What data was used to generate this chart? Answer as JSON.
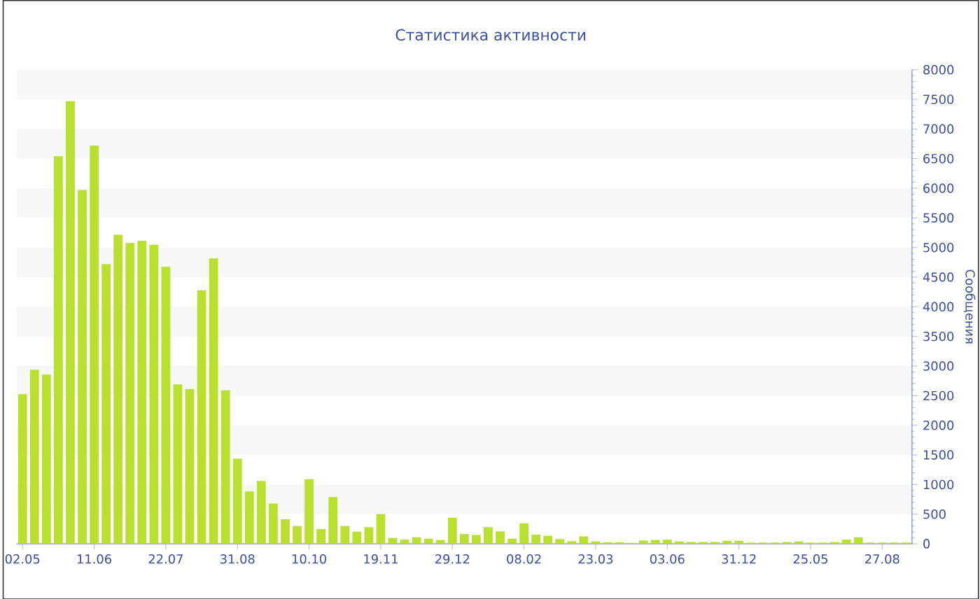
{
  "chart_data": {
    "type": "bar",
    "title": "Статистика активности",
    "ylabel": "Сообщения",
    "categories": [
      "02.05",
      null,
      null,
      null,
      null,
      null,
      "11.06",
      null,
      null,
      null,
      null,
      null,
      "22.07",
      null,
      null,
      null,
      null,
      null,
      "31.08",
      null,
      null,
      null,
      null,
      null,
      "10.10",
      null,
      null,
      null,
      null,
      null,
      "19.11",
      null,
      null,
      null,
      null,
      null,
      "29.12",
      null,
      null,
      null,
      null,
      null,
      "08.02",
      null,
      null,
      null,
      null,
      null,
      "23.03",
      null,
      null,
      null,
      null,
      null,
      "03.06",
      null,
      null,
      null,
      null,
      null,
      "31.12",
      null,
      null,
      null,
      null,
      null,
      "25.05",
      null,
      null,
      null,
      null,
      null,
      "27.08",
      null,
      null
    ],
    "values": [
      2525,
      2940,
      2855,
      6540,
      7470,
      5970,
      6720,
      4720,
      5215,
      5075,
      5115,
      5045,
      4675,
      2690,
      2610,
      4275,
      4815,
      2590,
      1435,
      885,
      1060,
      680,
      415,
      300,
      1090,
      250,
      790,
      300,
      205,
      280,
      500,
      100,
      70,
      110,
      85,
      65,
      440,
      165,
      150,
      280,
      210,
      85,
      345,
      155,
      135,
      80,
      45,
      125,
      40,
      25,
      25,
      15,
      55,
      65,
      70,
      40,
      30,
      30,
      30,
      50,
      50,
      20,
      20,
      20,
      30,
      40,
      20,
      20,
      30,
      70,
      110,
      20,
      20,
      20,
      20
    ],
    "color": "#b9e02f",
    "ylim": [
      0,
      8000
    ],
    "yticks": [
      0,
      500,
      1000,
      1500,
      2000,
      2500,
      3000,
      3500,
      4000,
      4500,
      5000,
      5500,
      6000,
      6500,
      7000,
      7500,
      8000
    ]
  }
}
